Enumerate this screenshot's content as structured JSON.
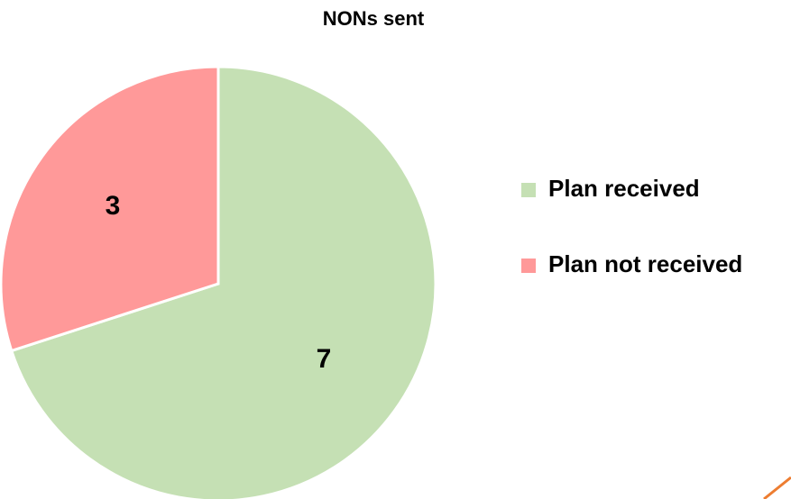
{
  "chart_data": {
    "type": "pie",
    "title": "NONs sent",
    "categories": [
      "Plan received",
      "Plan not received"
    ],
    "values": [
      7,
      3
    ],
    "colors": [
      "#c5e0b4",
      "#ff9999"
    ],
    "legend": "right"
  }
}
